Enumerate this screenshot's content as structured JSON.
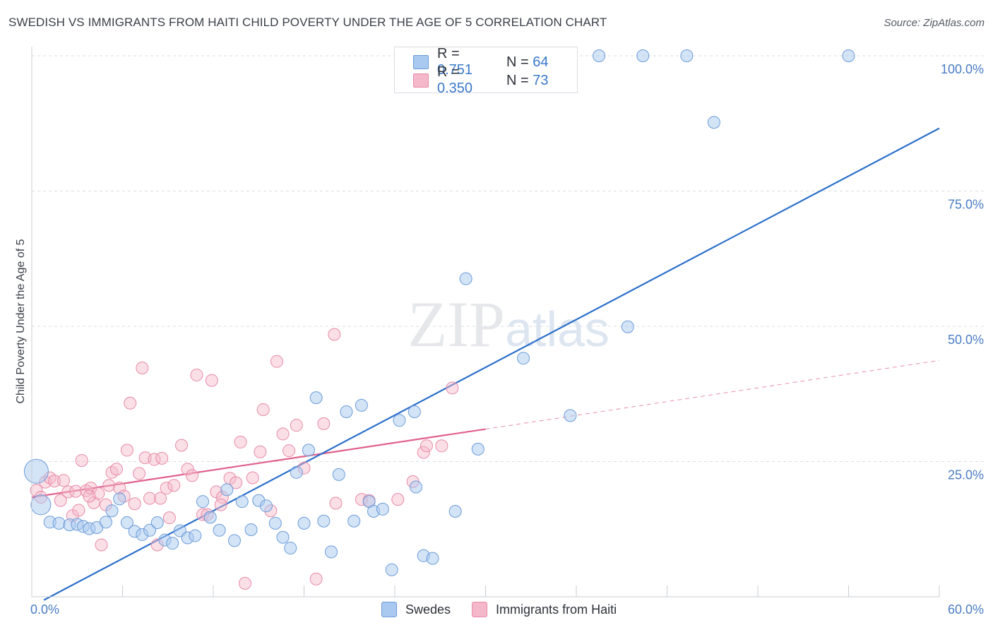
{
  "title": "SWEDISH VS IMMIGRANTS FROM HAITI CHILD POVERTY UNDER THE AGE OF 5 CORRELATION CHART",
  "source": "Source: ZipAtlas.com",
  "watermark": "ZIPatlas",
  "legend": {
    "rows": [
      {
        "r_label": "R =",
        "r_value": "0.751",
        "n_label": "N =",
        "n_value": "64"
      },
      {
        "r_label": "R =",
        "r_value": "0.350",
        "n_label": "N =",
        "n_value": "73"
      }
    ]
  },
  "bottom_legend": {
    "series1": "Swedes",
    "series2": "Immigrants from Haiti"
  },
  "colors": {
    "swedes_fill": "#a9c9f0",
    "swedes_stroke": "#6b9bd8",
    "swedes_line": "#2c6fcb",
    "haiti_fill": "#f5b8ca",
    "haiti_stroke": "#e88aa7",
    "haiti_line": "#e0608a",
    "tick": "#4a7cc4",
    "grid": "#d8dbe0"
  },
  "chart_data": {
    "type": "scatter",
    "title": "SWEDISH VS IMMIGRANTS FROM HAITI CHILD POVERTY UNDER THE AGE OF 5 CORRELATION CHART",
    "xlabel": "",
    "ylabel": "Child Poverty Under the Age of 5",
    "xlim": [
      0,
      60
    ],
    "ylim": [
      0,
      100
    ],
    "x_tick_labels": [
      "0.0%",
      "60.0%"
    ],
    "y_ticks": [
      25,
      50,
      75,
      100
    ],
    "y_tick_labels": [
      "25.0%",
      "50.0%",
      "75.0%",
      "100.0%"
    ],
    "grid": true,
    "legend_position": "top-center",
    "series": [
      {
        "name": "Swedes",
        "r": 0.751,
        "n": 64,
        "trend": {
          "x0": 0.8,
          "y0": -0.6,
          "x1": 60,
          "y1": 86.6
        },
        "points": [
          [
            0.3,
            23.2
          ],
          [
            0.6,
            17.0
          ],
          [
            1.2,
            13.8
          ],
          [
            1.8,
            13.6
          ],
          [
            2.5,
            13.3
          ],
          [
            3.0,
            13.4
          ],
          [
            3.4,
            13.0
          ],
          [
            3.8,
            12.6
          ],
          [
            4.3,
            12.8
          ],
          [
            4.9,
            13.8
          ],
          [
            5.3,
            15.9
          ],
          [
            5.8,
            18.1
          ],
          [
            6.3,
            13.7
          ],
          [
            6.8,
            12.1
          ],
          [
            7.3,
            11.5
          ],
          [
            7.8,
            12.3
          ],
          [
            8.3,
            13.7
          ],
          [
            8.8,
            10.5
          ],
          [
            9.3,
            9.9
          ],
          [
            9.8,
            12.2
          ],
          [
            10.3,
            10.9
          ],
          [
            10.8,
            11.3
          ],
          [
            11.3,
            17.6
          ],
          [
            11.8,
            14.7
          ],
          [
            12.4,
            12.3
          ],
          [
            12.9,
            19.8
          ],
          [
            13.4,
            10.4
          ],
          [
            13.9,
            17.6
          ],
          [
            14.5,
            12.4
          ],
          [
            15.0,
            17.8
          ],
          [
            15.5,
            16.8
          ],
          [
            16.1,
            13.6
          ],
          [
            16.6,
            11.0
          ],
          [
            17.1,
            9.0
          ],
          [
            17.5,
            23.0
          ],
          [
            18.0,
            13.6
          ],
          [
            18.3,
            27.1
          ],
          [
            18.8,
            36.8
          ],
          [
            19.3,
            14.0
          ],
          [
            19.8,
            8.3
          ],
          [
            20.3,
            22.6
          ],
          [
            20.8,
            34.2
          ],
          [
            21.3,
            14.0
          ],
          [
            21.8,
            35.4
          ],
          [
            22.3,
            17.6
          ],
          [
            22.6,
            15.8
          ],
          [
            23.2,
            16.2
          ],
          [
            23.8,
            5.0
          ],
          [
            24.3,
            32.6
          ],
          [
            25.3,
            34.2
          ],
          [
            25.4,
            20.3
          ],
          [
            25.9,
            7.6
          ],
          [
            26.5,
            7.1
          ],
          [
            28.0,
            15.8
          ],
          [
            28.7,
            58.8
          ],
          [
            29.5,
            27.3
          ],
          [
            32.5,
            44.1
          ],
          [
            35.6,
            33.5
          ],
          [
            39.4,
            49.9
          ],
          [
            37.5,
            100.0
          ],
          [
            40.4,
            100.0
          ],
          [
            43.3,
            100.0
          ],
          [
            45.1,
            87.7
          ],
          [
            54.0,
            100.0
          ]
        ],
        "sizes": [
          3,
          2
        ]
      },
      {
        "name": "Immigrants from Haiti",
        "r": 0.35,
        "n": 73,
        "trend": {
          "x0": 0,
          "y0": 18.4,
          "x1": 30,
          "y1": 31.0,
          "dash_x1": 60,
          "dash_y1": 43.7
        },
        "points": [
          [
            0.3,
            19.7
          ],
          [
            0.6,
            18.4
          ],
          [
            0.9,
            21.2
          ],
          [
            1.2,
            22.0
          ],
          [
            1.5,
            21.4
          ],
          [
            1.9,
            17.8
          ],
          [
            2.1,
            21.5
          ],
          [
            2.4,
            19.4
          ],
          [
            2.7,
            15.0
          ],
          [
            2.9,
            19.5
          ],
          [
            3.1,
            16.0
          ],
          [
            3.3,
            25.2
          ],
          [
            3.6,
            19.6
          ],
          [
            3.9,
            20.1
          ],
          [
            4.1,
            17.4
          ],
          [
            4.4,
            19.1
          ],
          [
            4.6,
            9.6
          ],
          [
            4.9,
            17.0
          ],
          [
            5.1,
            20.6
          ],
          [
            5.3,
            23.0
          ],
          [
            5.6,
            23.6
          ],
          [
            5.8,
            20.1
          ],
          [
            6.1,
            18.6
          ],
          [
            6.3,
            27.1
          ],
          [
            6.5,
            35.8
          ],
          [
            6.8,
            17.2
          ],
          [
            7.1,
            22.8
          ],
          [
            7.3,
            42.3
          ],
          [
            7.5,
            25.7
          ],
          [
            7.8,
            18.2
          ],
          [
            8.1,
            25.4
          ],
          [
            8.3,
            9.6
          ],
          [
            8.6,
            25.6
          ],
          [
            8.9,
            20.1
          ],
          [
            9.1,
            14.6
          ],
          [
            9.4,
            20.6
          ],
          [
            9.9,
            28.0
          ],
          [
            10.3,
            23.6
          ],
          [
            10.6,
            22.4
          ],
          [
            10.9,
            41.0
          ],
          [
            11.3,
            15.2
          ],
          [
            11.6,
            15.2
          ],
          [
            11.9,
            40.0
          ],
          [
            12.2,
            19.4
          ],
          [
            12.6,
            18.4
          ],
          [
            13.1,
            21.9
          ],
          [
            13.5,
            21.1
          ],
          [
            13.8,
            28.6
          ],
          [
            14.1,
            2.5
          ],
          [
            14.6,
            22.0
          ],
          [
            15.1,
            26.8
          ],
          [
            15.3,
            34.6
          ],
          [
            15.8,
            15.9
          ],
          [
            16.2,
            43.5
          ],
          [
            16.6,
            30.1
          ],
          [
            17.0,
            27.0
          ],
          [
            17.5,
            31.7
          ],
          [
            18.0,
            23.8
          ],
          [
            18.8,
            3.3
          ],
          [
            19.3,
            32.0
          ],
          [
            20.0,
            48.5
          ],
          [
            20.1,
            17.3
          ],
          [
            21.8,
            18.0
          ],
          [
            22.3,
            17.8
          ],
          [
            24.2,
            18.0
          ],
          [
            25.2,
            21.3
          ],
          [
            25.9,
            26.7
          ],
          [
            26.1,
            27.9
          ],
          [
            27.1,
            27.9
          ],
          [
            27.8,
            38.6
          ],
          [
            8.5,
            18.2
          ],
          [
            12.5,
            17.0
          ],
          [
            3.8,
            18.6
          ]
        ]
      }
    ]
  }
}
